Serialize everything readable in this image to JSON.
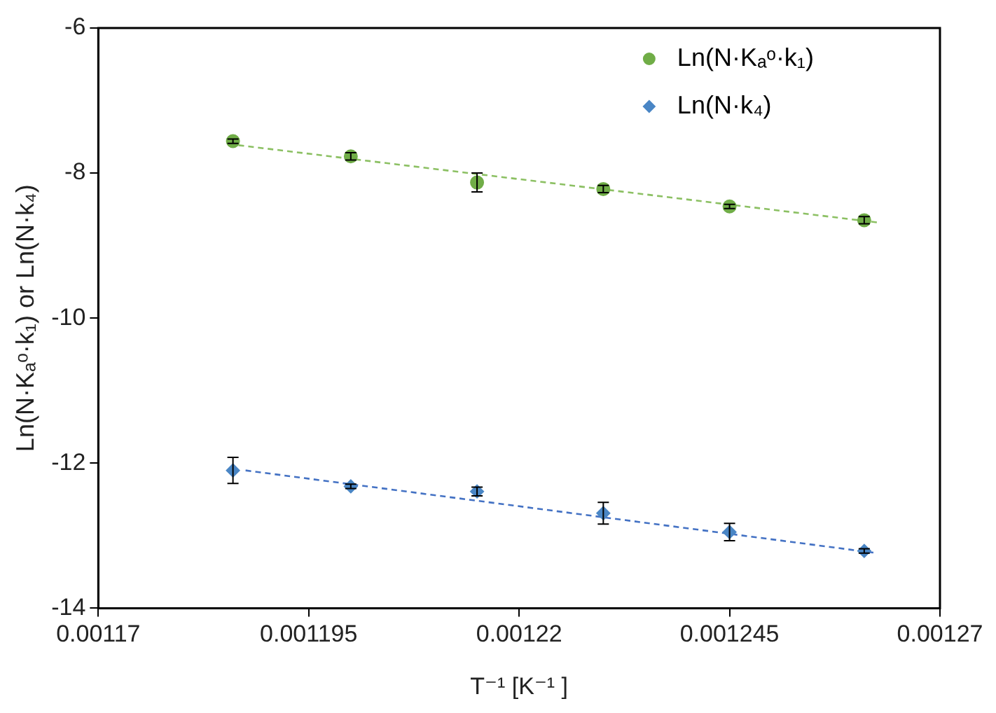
{
  "chart_data": {
    "type": "scatter",
    "xlabel": "T⁻¹ [K⁻¹ ]",
    "ylabel": "Ln(N·Kₐᵒ·k₁) or Ln(N·k₄)",
    "x": [
      0.001186,
      0.0012,
      0.001215,
      0.00123,
      0.001245,
      0.001261
    ],
    "xlim": [
      0.00117,
      0.00127
    ],
    "xticks": [
      0.00117,
      0.001195,
      0.00122,
      0.001245,
      0.00127
    ],
    "ylim": [
      -14,
      -6
    ],
    "yticks": [
      -14,
      -12,
      -10,
      -8,
      -6
    ],
    "grid": false,
    "legend": "top right",
    "series": [
      {
        "name": "Ln(N·Kₐᵒ·k₁)",
        "color": "#70ad47",
        "marker": "circle",
        "values": [
          -7.56,
          -7.77,
          -8.13,
          -8.22,
          -8.46,
          -8.65
        ],
        "errors": [
          0.03,
          0.05,
          0.13,
          0.05,
          0.03,
          0.05
        ]
      },
      {
        "name": "Ln(N·k₄)",
        "color": "#4a86c5",
        "marker": "diamond",
        "values": [
          -12.1,
          -12.32,
          -12.39,
          -12.69,
          -12.95,
          -13.21
        ],
        "errors": [
          0.18,
          0.03,
          0.06,
          0.15,
          0.12,
          0.03
        ]
      },
      {
        "type": "line",
        "color": "#8cc063",
        "marker": "none",
        "line_style": "dashed",
        "x": [
          0.0011855,
          0.0012625
        ],
        "values": [
          -7.6,
          -8.68
        ]
      },
      {
        "type": "line",
        "color": "#4472c4",
        "marker": "none",
        "line_style": "dashed",
        "x": [
          0.0011875,
          0.0012625
        ],
        "values": [
          -12.1,
          -13.24
        ]
      }
    ]
  }
}
